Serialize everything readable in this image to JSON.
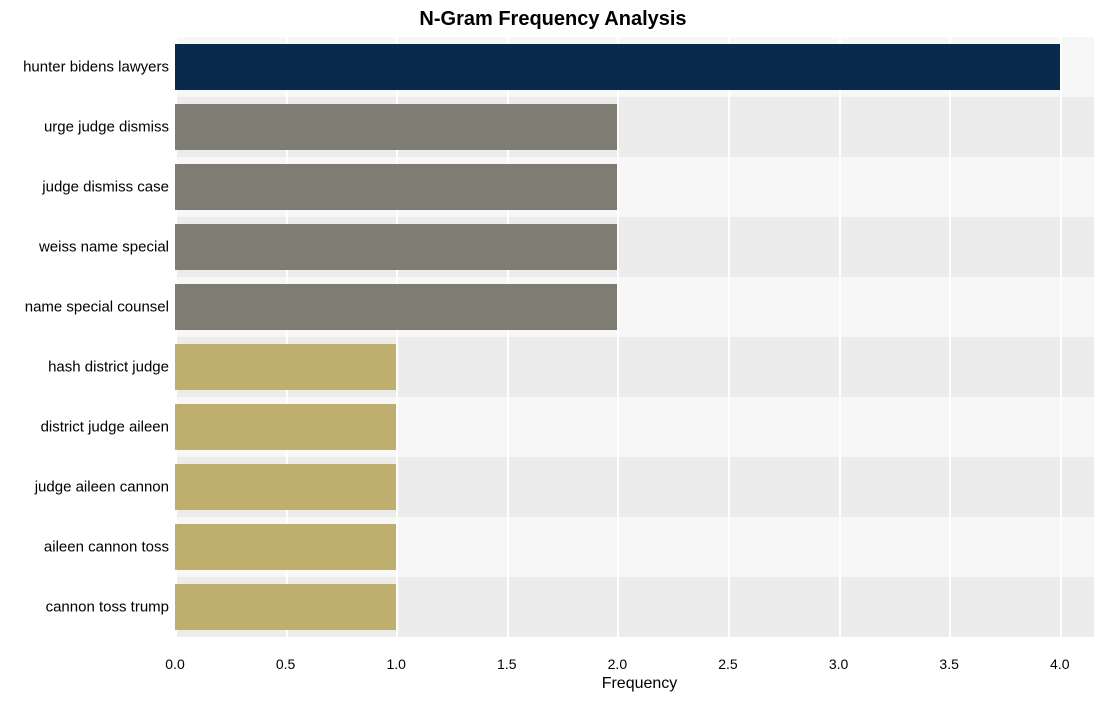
{
  "chart": {
    "type": "bar-horizontal",
    "title": "N-Gram Frequency Analysis",
    "title_fontsize": 20,
    "title_fontweight": 700,
    "xlabel": "Frequency",
    "xlabel_fontsize": 16,
    "ylabel_fontsize": 15,
    "xtick_fontsize": 14,
    "xlim": [
      0.0,
      4.2
    ],
    "xtick_step": 0.5,
    "xticks": [
      "0.0",
      "0.5",
      "1.0",
      "1.5",
      "2.0",
      "2.5",
      "3.0",
      "3.5",
      "4.0"
    ],
    "background_color": "#ffffff",
    "row_band_colors": [
      "#f7f7f7",
      "#ececec"
    ],
    "bar_height_ratio": 0.77,
    "categories": [
      "hunter bidens lawyers",
      "urge judge dismiss",
      "judge dismiss case",
      "weiss name special",
      "name special counsel",
      "hash district judge",
      "district judge aileen",
      "judge aileen cannon",
      "aileen cannon toss",
      "cannon toss trump"
    ],
    "values": [
      4,
      2,
      2,
      2,
      2,
      1,
      1,
      1,
      1,
      1
    ],
    "bar_colors": [
      "#0a2a4d",
      "#7f7c73",
      "#7f7c73",
      "#7f7c73",
      "#7f7c73",
      "#bfaf6e",
      "#bfaf6e",
      "#bfaf6e",
      "#bfaf6e",
      "#bfaf6e"
    ]
  }
}
